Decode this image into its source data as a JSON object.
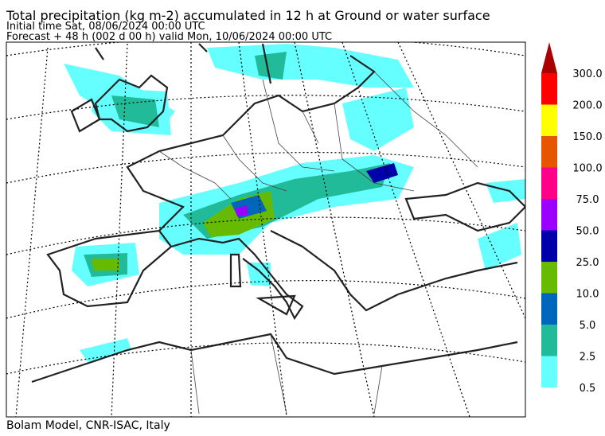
{
  "header": {
    "title": "Total precipitation (kg m-2) accumulated in  12 h at Ground or water surface",
    "initial_time": "Initial time  Sat, 08/06/2024  00:00 UTC",
    "forecast": "Forecast  +  48 h  (002 d 00 h)  valid Mon, 10/06/2024 00:00 UTC"
  },
  "colorbar": {
    "levels": [
      "0.5",
      "2.5",
      "5.0",
      "10.0",
      "25.0",
      "50.0",
      "75.0",
      "100.0",
      "150.0",
      "200.0",
      "300.0"
    ],
    "colors": [
      "#66ffff",
      "#22bb99",
      "#0066bb",
      "#66bb00",
      "#0000aa",
      "#9900ff",
      "#ff0088",
      "#e65500",
      "#ffff00",
      "#ff0000",
      "#aa0000"
    ]
  },
  "footer": {
    "credit": "Bolam Model, CNR-ISAC, Italy"
  }
}
